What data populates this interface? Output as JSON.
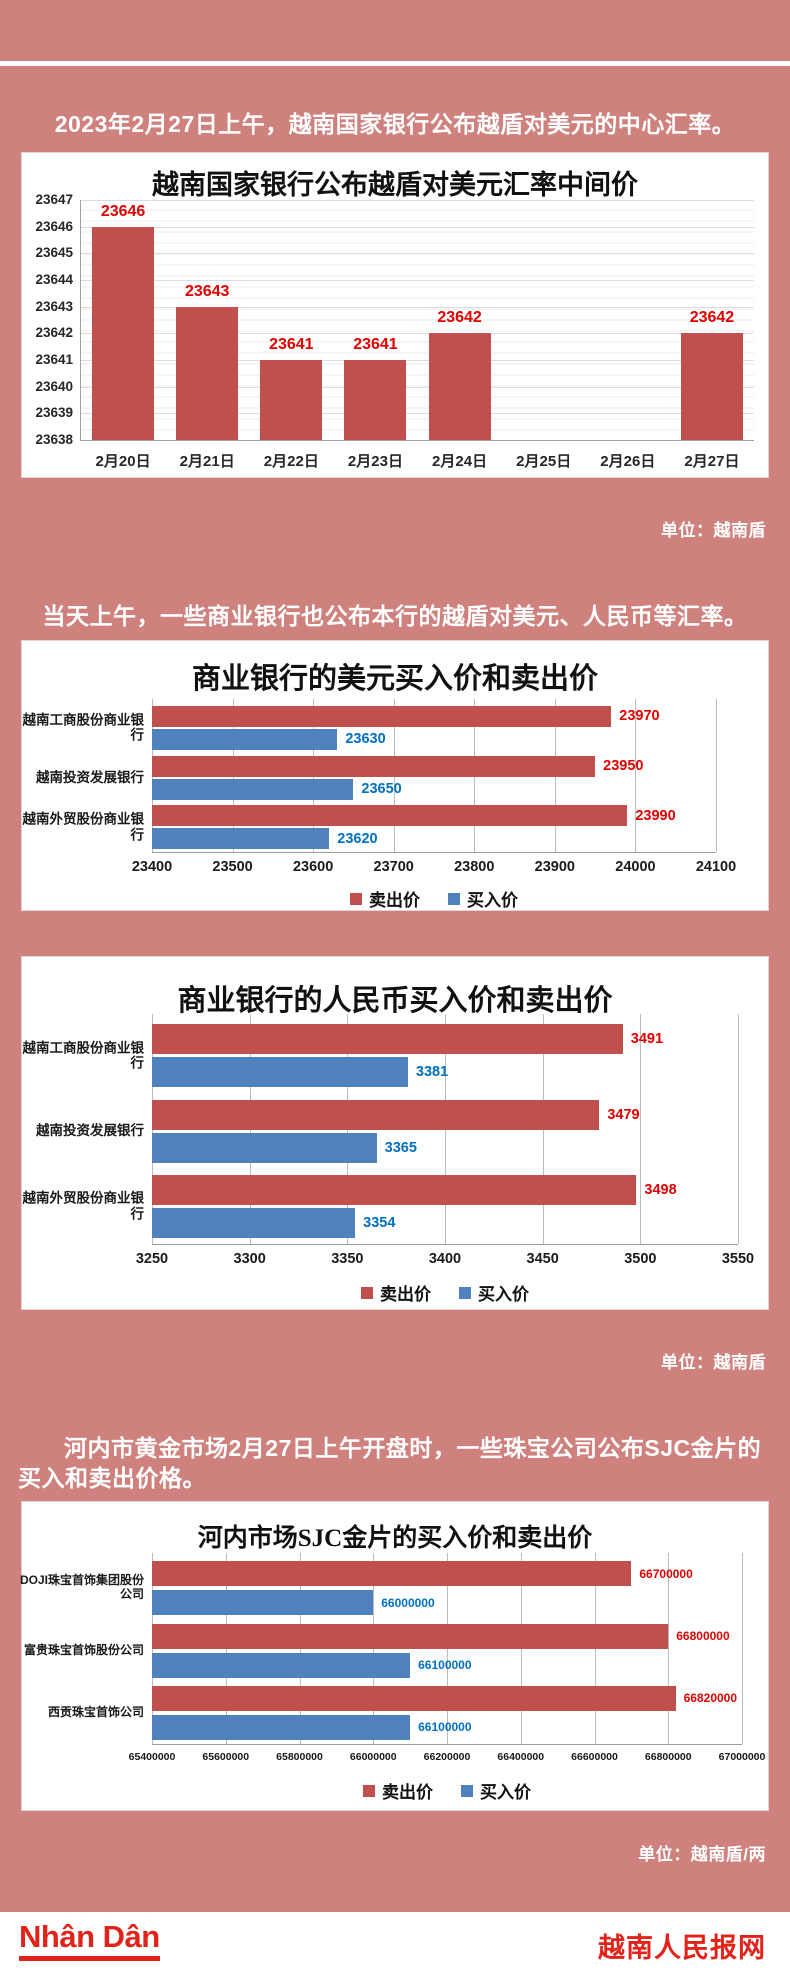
{
  "page_bg": "#cf817e",
  "colors": {
    "sell_bar": "#c0504d",
    "buy_bar": "#4f81bd",
    "sell_label": "#e00000",
    "buy_label": "#0070c0",
    "brand_red": "#e2231a"
  },
  "paragraphs": {
    "p1": "2023年2月27日上午，越南国家银行公布越盾对美元的中心汇率。",
    "p2": "当天上午，一些商业银行也公布本行的越盾对美元、人民币等汇率。",
    "p3": "河内市黄金市场2月27日上午开盘时，一些珠宝公司公布SJC金片的买入和卖出价格。"
  },
  "units": {
    "u1": "单位：越南盾",
    "u2": "单位：越南盾",
    "u3": "单位：越南盾/两"
  },
  "footer": {
    "logo": "Nhân Dân",
    "site": "越南人民报网"
  },
  "chart_data": [
    {
      "type": "bar",
      "title": "越南国家银行公布越盾对美元汇率中间价",
      "categories": [
        "2月20日",
        "2月21日",
        "2月22日",
        "2月23日",
        "2月24日",
        "2月25日",
        "2月26日",
        "2月27日"
      ],
      "values": [
        23646,
        23643,
        23641,
        23641,
        23642,
        null,
        null,
        23642
      ],
      "ylim": [
        23638,
        23647
      ],
      "ytick_step": 1,
      "bar_color": "#c0504d",
      "label_color": "#e00000",
      "grid": true,
      "legend": []
    },
    {
      "type": "bar-horizontal",
      "title": "商业银行的美元买入价和卖出价",
      "categories": [
        "越南工商股份商业银行",
        "越南投资发展银行",
        "越南外贸股份商业银行"
      ],
      "series": [
        {
          "name": "卖出价",
          "color": "#c0504d",
          "label_color": "#e00000",
          "values": [
            23970,
            23950,
            23990
          ]
        },
        {
          "name": "买入价",
          "color": "#4f81bd",
          "label_color": "#0070c0",
          "values": [
            23630,
            23650,
            23620
          ]
        }
      ],
      "xlim": [
        23400,
        24100
      ],
      "xtick_step": 100,
      "grid": true,
      "legend_position": "bottom"
    },
    {
      "type": "bar-horizontal",
      "title": "商业银行的人民币买入价和卖出价",
      "categories": [
        "越南工商股份商业银行",
        "越南投资发展银行",
        "越南外贸股份商业银行"
      ],
      "series": [
        {
          "name": "卖出价",
          "color": "#c0504d",
          "label_color": "#e00000",
          "values": [
            3491,
            3479,
            3498
          ]
        },
        {
          "name": "买入价",
          "color": "#4f81bd",
          "label_color": "#0070c0",
          "values": [
            3381,
            3365,
            3354
          ]
        }
      ],
      "xlim": [
        3250,
        3550
      ],
      "xtick_step": 50,
      "grid": true,
      "legend_position": "bottom"
    },
    {
      "type": "bar-horizontal",
      "title": "河内市场SJC金片的买入价和卖出价",
      "categories": [
        "DOJI珠宝首饰集团股份公司",
        "富贵珠宝首饰股份公司",
        "西贡珠宝首饰公司"
      ],
      "series": [
        {
          "name": "卖出价",
          "color": "#c0504d",
          "label_color": "#e00000",
          "values": [
            66700000,
            66800000,
            66820000
          ]
        },
        {
          "name": "买入价",
          "color": "#4f81bd",
          "label_color": "#0070c0",
          "values": [
            66000000,
            66100000,
            66100000
          ]
        }
      ],
      "xlim": [
        65400000,
        67000000
      ],
      "xtick_step": 200000,
      "grid": true,
      "legend_position": "bottom"
    }
  ]
}
